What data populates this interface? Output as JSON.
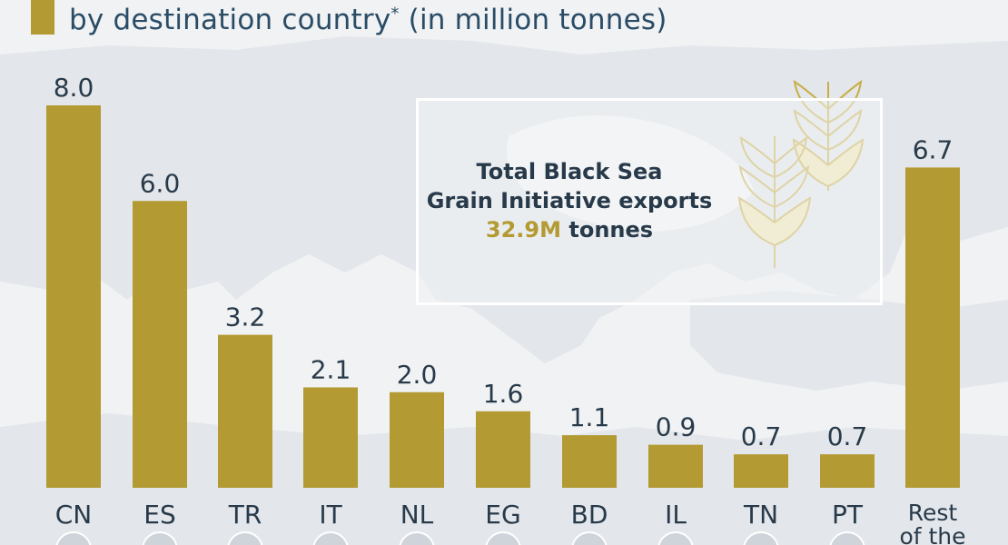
{
  "title": {
    "main": "by destination country",
    "marker": "*",
    "unit": " (in million tonnes)"
  },
  "info_box": {
    "line1": "Total Black Sea",
    "line2": "Grain Initiative exports",
    "highlight": "32.9M",
    "suffix": " tonnes"
  },
  "colors": {
    "bar": "#b39a33",
    "text": "#283a4a",
    "background": "#f0f2f4",
    "map_land": "#e2e5e9",
    "map_sea": "#f3f4f6"
  },
  "icons": [
    "wheat-icon",
    "flag-icon"
  ],
  "chart_data": {
    "type": "bar",
    "categories": [
      "CN",
      "ES",
      "TR",
      "IT",
      "NL",
      "EG",
      "BD",
      "IL",
      "TN",
      "PT",
      "Rest of the"
    ],
    "values": [
      8.0,
      6.0,
      3.2,
      2.1,
      2.0,
      1.6,
      1.1,
      0.9,
      0.7,
      0.7,
      6.7
    ],
    "value_labels": [
      "8.0",
      "6.0",
      "3.2",
      "2.1",
      "2.0",
      "1.6",
      "1.1",
      "0.9",
      "0.7",
      "0.7",
      "6.7"
    ],
    "ylim": [
      0,
      8.0
    ],
    "grid": false,
    "legend": "none"
  }
}
